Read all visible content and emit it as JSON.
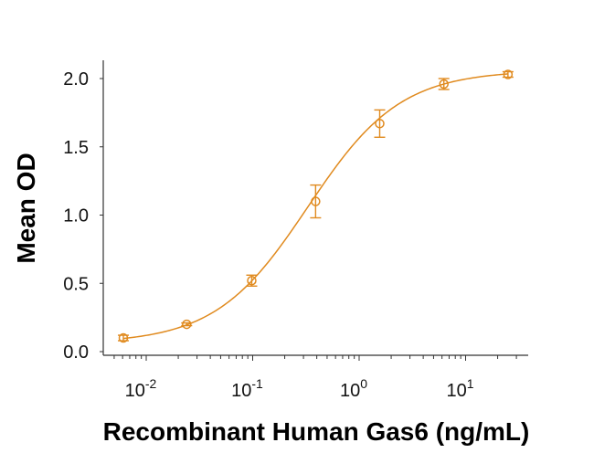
{
  "chart_data": {
    "type": "scatter",
    "title": "",
    "xlabel": "Recombinant Human Gas6 (ng/mL)",
    "ylabel": "Mean OD",
    "x_scale": "log",
    "xlim": [
      0.004,
      39
    ],
    "ylim": [
      0,
      2.0
    ],
    "x_ticks": [
      {
        "value": 0.01,
        "base": "10",
        "exp": "-2"
      },
      {
        "value": 0.1,
        "base": "10",
        "exp": "-1"
      },
      {
        "value": 1,
        "base": "10",
        "exp": "0"
      },
      {
        "value": 10,
        "base": "10",
        "exp": "1"
      }
    ],
    "y_ticks": [
      {
        "value": 0.0,
        "label": "0.0"
      },
      {
        "value": 0.5,
        "label": "0.5"
      },
      {
        "value": 1.0,
        "label": "1.0"
      },
      {
        "value": 1.5,
        "label": "1.5"
      },
      {
        "value": 2.0,
        "label": "2.0"
      }
    ],
    "grid": false,
    "color": "#E08A1E",
    "series": [
      {
        "x": [
          0.0061,
          0.024,
          0.098,
          0.39,
          1.56,
          6.25,
          25
        ],
        "y": [
          0.1,
          0.2,
          0.52,
          1.1,
          1.67,
          1.96,
          2.03
        ],
        "error": [
          0.02,
          0.01,
          0.04,
          0.12,
          0.1,
          0.04,
          0.02
        ],
        "marker": "open-circle",
        "fit": "sigmoidal curve"
      }
    ]
  }
}
